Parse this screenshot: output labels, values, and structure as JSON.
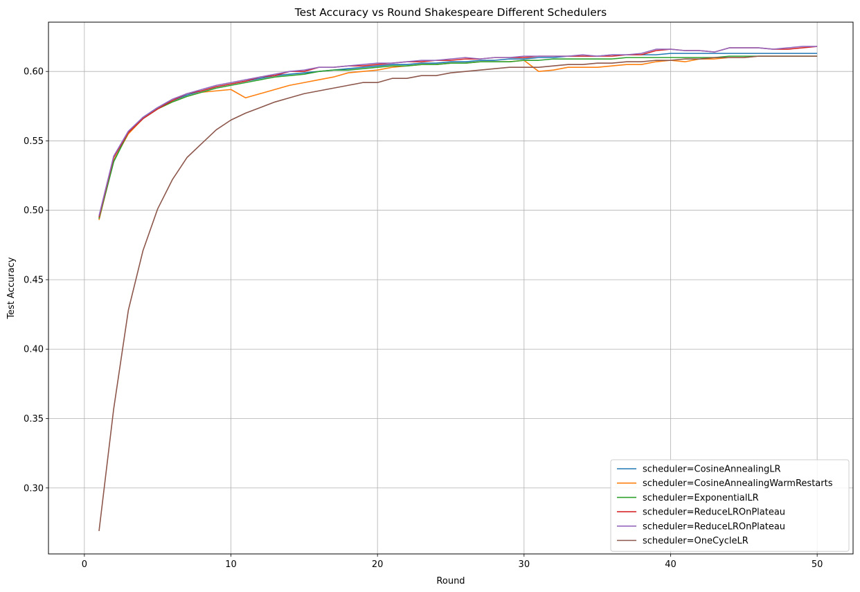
{
  "chart_data": {
    "type": "line",
    "title": "Test Accuracy vs Round Shakespeare Different Schedulers",
    "xlabel": "Round",
    "ylabel": "Test Accuracy",
    "xlim": [
      -2.45,
      52.45
    ],
    "ylim": [
      0.2525,
      0.6355
    ],
    "xticks": [
      0,
      10,
      20,
      30,
      40,
      50
    ],
    "yticks": [
      0.3,
      0.35,
      0.4,
      0.45,
      0.5,
      0.55,
      0.6
    ],
    "xtick_labels": [
      "0",
      "10",
      "20",
      "30",
      "40",
      "50"
    ],
    "ytick_labels": [
      "0.30",
      "0.35",
      "0.40",
      "0.45",
      "0.50",
      "0.55",
      "0.60"
    ],
    "grid": true,
    "legend_position": "lower-right",
    "x": [
      1,
      2,
      3,
      4,
      5,
      6,
      7,
      8,
      9,
      10,
      11,
      12,
      13,
      14,
      15,
      16,
      17,
      18,
      19,
      20,
      21,
      22,
      23,
      24,
      25,
      26,
      27,
      28,
      29,
      30,
      31,
      32,
      33,
      34,
      35,
      36,
      37,
      38,
      39,
      40,
      41,
      42,
      43,
      44,
      45,
      46,
      47,
      48,
      49,
      50
    ],
    "series": [
      {
        "name": "scheduler=CosineAnnealingLR",
        "color": "#1f77b4",
        "values": [
          0.494,
          0.535,
          0.556,
          0.567,
          0.574,
          0.579,
          0.583,
          0.586,
          0.589,
          0.591,
          0.593,
          0.595,
          0.597,
          0.598,
          0.599,
          0.6,
          0.601,
          0.602,
          0.603,
          0.604,
          0.605,
          0.605,
          0.606,
          0.606,
          0.607,
          0.607,
          0.608,
          0.608,
          0.609,
          0.609,
          0.61,
          0.61,
          0.611,
          0.611,
          0.611,
          0.612,
          0.612,
          0.612,
          0.612,
          0.613,
          0.613,
          0.613,
          0.613,
          0.613,
          0.613,
          0.613,
          0.613,
          0.613,
          0.613,
          0.613
        ]
      },
      {
        "name": "scheduler=CosineAnnealingWarmRestarts",
        "color": "#ff7f0e",
        "values": [
          0.493,
          0.536,
          0.555,
          0.566,
          0.573,
          0.578,
          0.582,
          0.585,
          0.586,
          0.587,
          0.581,
          0.584,
          0.587,
          0.59,
          0.592,
          0.594,
          0.596,
          0.599,
          0.6,
          0.601,
          0.603,
          0.604,
          0.605,
          0.605,
          0.606,
          0.606,
          0.607,
          0.607,
          0.607,
          0.608,
          0.6,
          0.601,
          0.603,
          0.603,
          0.603,
          0.604,
          0.605,
          0.605,
          0.607,
          0.608,
          0.607,
          0.609,
          0.609,
          0.61,
          0.61,
          0.611,
          0.611,
          0.611,
          0.611,
          0.611
        ]
      },
      {
        "name": "scheduler=ExponentialLR",
        "color": "#2ca02c",
        "values": [
          0.494,
          0.535,
          0.556,
          0.566,
          0.573,
          0.578,
          0.582,
          0.585,
          0.588,
          0.59,
          0.592,
          0.594,
          0.596,
          0.597,
          0.598,
          0.6,
          0.601,
          0.601,
          0.602,
          0.603,
          0.604,
          0.604,
          0.605,
          0.605,
          0.606,
          0.606,
          0.607,
          0.607,
          0.607,
          0.608,
          0.608,
          0.609,
          0.609,
          0.609,
          0.609,
          0.609,
          0.61,
          0.61,
          0.61,
          0.61,
          0.61,
          0.61,
          0.61,
          0.611,
          0.611,
          0.611,
          0.611,
          0.611,
          0.611,
          0.611
        ]
      },
      {
        "name": "scheduler=ReduceLROnPlateau",
        "color": "#d62728",
        "values": [
          0.495,
          0.538,
          0.556,
          0.566,
          0.573,
          0.579,
          0.584,
          0.586,
          0.589,
          0.591,
          0.593,
          0.596,
          0.597,
          0.6,
          0.6,
          0.603,
          0.603,
          0.604,
          0.604,
          0.605,
          0.606,
          0.607,
          0.607,
          0.608,
          0.608,
          0.609,
          0.609,
          0.61,
          0.61,
          0.61,
          0.611,
          0.611,
          0.611,
          0.611,
          0.611,
          0.611,
          0.612,
          0.612,
          0.615,
          0.616,
          0.615,
          0.615,
          0.614,
          0.617,
          0.617,
          0.617,
          0.616,
          0.616,
          0.617,
          0.618
        ]
      },
      {
        "name": "scheduler=ReduceLROnPlateau",
        "color": "#9467bd",
        "values": [
          0.496,
          0.539,
          0.557,
          0.567,
          0.574,
          0.58,
          0.584,
          0.587,
          0.59,
          0.592,
          0.594,
          0.596,
          0.598,
          0.6,
          0.601,
          0.603,
          0.603,
          0.604,
          0.605,
          0.606,
          0.606,
          0.607,
          0.608,
          0.608,
          0.609,
          0.61,
          0.609,
          0.61,
          0.61,
          0.611,
          0.611,
          0.611,
          0.611,
          0.612,
          0.611,
          0.612,
          0.612,
          0.613,
          0.616,
          0.616,
          0.615,
          0.615,
          0.614,
          0.617,
          0.617,
          0.617,
          0.616,
          0.617,
          0.618,
          0.618
        ]
      },
      {
        "name": "scheduler=OneCycleLR",
        "color": "#8c564b",
        "values": [
          0.269,
          0.357,
          0.428,
          0.471,
          0.501,
          0.522,
          0.538,
          0.548,
          0.558,
          0.565,
          0.57,
          0.574,
          0.578,
          0.581,
          0.584,
          0.586,
          0.588,
          0.59,
          0.592,
          0.592,
          0.595,
          0.595,
          0.597,
          0.597,
          0.599,
          0.6,
          0.601,
          0.602,
          0.603,
          0.603,
          0.603,
          0.604,
          0.605,
          0.605,
          0.606,
          0.606,
          0.607,
          0.607,
          0.608,
          0.608,
          0.609,
          0.609,
          0.61,
          0.61,
          0.61,
          0.611,
          0.611,
          0.611,
          0.611,
          0.611
        ]
      }
    ]
  }
}
